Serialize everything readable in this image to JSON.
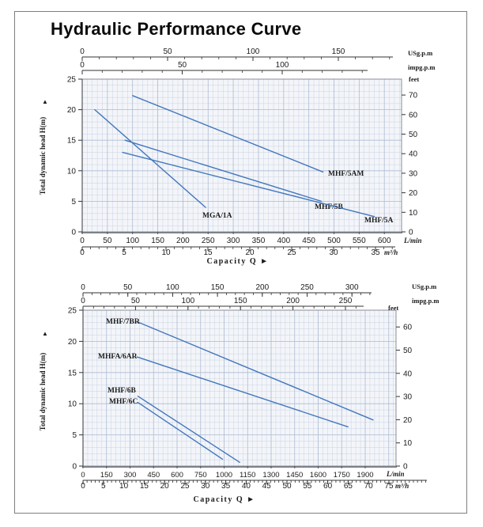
{
  "page": {
    "title": "Hydraulic Performance Curve"
  },
  "colors": {
    "curve": "#4377bd",
    "grid_minor": "#c9d2e2",
    "grid_major": "#aebdd4",
    "plot_bg": "#f3f5f9",
    "spine": "#8a8f98",
    "text": "#1c1c1c",
    "frame_border": "#7e7e7e"
  },
  "chart_data": [
    {
      "type": "line",
      "ylabel": "Total dynamic head H(m)",
      "y_arrow": "▲",
      "xlabel": "Capacity Q",
      "x_arrow": "►",
      "x_unit_primary": "L/min",
      "x_unit_secondary": "m³/h",
      "top_axis_units": [
        "USg.p.m",
        "impg.p.m"
      ],
      "right_axis_unit": "feet",
      "ylim": [
        0,
        25
      ],
      "grid": true,
      "legend_position": "inline-curve-labels",
      "head_m_ticks": [
        0,
        5,
        10,
        15,
        20,
        25
      ],
      "feet_ticks": [
        0,
        10,
        20,
        30,
        40,
        50,
        60,
        70
      ],
      "lmin_tick_labels": [
        "0",
        "50",
        "100",
        "150",
        "200",
        "250",
        "300",
        "350",
        "400",
        "450",
        "500",
        "550",
        "600"
      ],
      "m3h_tick_labels": [
        "0",
        "5",
        "10",
        "15",
        "20",
        "25",
        "30",
        "35"
      ],
      "usgpm_tick_labels": [
        "0",
        "50",
        "100",
        "150"
      ],
      "impgpm_tick_labels": [
        "0",
        "50",
        "100"
      ],
      "series": [
        {
          "name": "MGA/1A",
          "points_lmin_m": [
            [
              25,
              20
            ],
            [
              245,
              4
            ]
          ]
        },
        {
          "name": "MHF/5AM",
          "points_lmin_m": [
            [
              100,
              22.3
            ],
            [
              478,
              9.8
            ]
          ]
        },
        {
          "name": "MHF/5B",
          "points_lmin_m": [
            [
              85,
              15
            ],
            [
              475,
              5
            ]
          ]
        },
        {
          "name": "MHF/5A",
          "points_lmin_m": [
            [
              80,
              13
            ],
            [
              580,
              2.5
            ]
          ]
        }
      ]
    },
    {
      "type": "line",
      "ylabel": "Total dynamic head H(m)",
      "y_arrow": "▲",
      "xlabel": "Capacity Q",
      "x_arrow": "►",
      "x_unit_primary": "L/min",
      "x_unit_secondary": "m³/h",
      "top_axis_units": [
        "USg.p.m",
        "impg.p.m"
      ],
      "right_axis_unit": "feet",
      "ylim": [
        0,
        25
      ],
      "grid": true,
      "legend_position": "inline-curve-labels",
      "head_m_ticks": [
        0,
        5,
        10,
        15,
        20,
        25
      ],
      "feet_ticks": [
        0,
        10,
        20,
        30,
        40,
        50,
        60
      ],
      "lmin_tick_labels": [
        "0",
        "150",
        "300",
        "450",
        "600",
        "750",
        "1000",
        "1150",
        "1300",
        "1450",
        "1600",
        "1750",
        "1900"
      ],
      "m3h_tick_labels": [
        "0",
        "5",
        "10",
        "15",
        "20",
        "25",
        "30",
        "35",
        "40",
        "45",
        "50",
        "55",
        "60",
        "65",
        "70",
        "75"
      ],
      "usgpm_tick_labels": [
        "0",
        "50",
        "100",
        "150",
        "200",
        "250",
        "300"
      ],
      "impgpm_tick_labels": [
        "0",
        "50",
        "100",
        "150",
        "200",
        "250"
      ],
      "series": [
        {
          "name": "MHF/7BR",
          "points_lmin_m": [
            [
              350,
              23.1
            ],
            [
              1850,
              7.4
            ]
          ]
        },
        {
          "name": "MHFA/6AR",
          "points_lmin_m": [
            [
              345,
              17.5
            ],
            [
              1690,
              6.3
            ]
          ]
        },
        {
          "name": "MHF/6B",
          "points_lmin_m": [
            [
              350,
              11.2
            ],
            [
              1000,
              0.6
            ]
          ]
        },
        {
          "name": "MHF/6C",
          "points_lmin_m": [
            [
              350,
              10.2
            ],
            [
              890,
              1.1
            ]
          ]
        }
      ]
    }
  ]
}
